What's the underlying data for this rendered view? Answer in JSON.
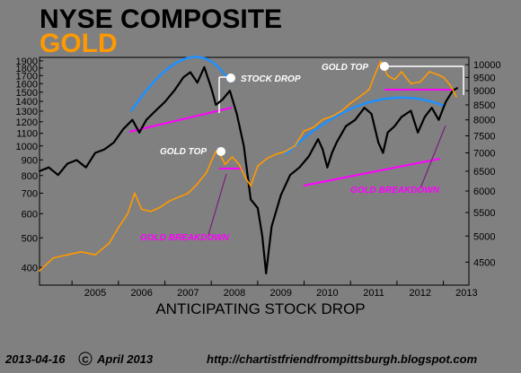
{
  "titles": {
    "line1": "NYSE COMPOSITE",
    "line2": "GOLD"
  },
  "footer": {
    "date": "2013-04-16",
    "copyright_symbol": "C",
    "month": "April 2013",
    "url": "http://chartistfriendfrompittsburgh.blogspot.com"
  },
  "colors": {
    "background": "#808080",
    "nyse": "#000000",
    "gold": "#ff9900",
    "arc": "#1e90ff",
    "trend": "#ff00ff",
    "marker": "#ffffff"
  },
  "chart_data": {
    "type": "line",
    "xlabel": "ANTICIPATING STOCK DROP",
    "x_ticks": [
      "2005",
      "2006",
      "2007",
      "2008",
      "2009",
      "2010",
      "2011",
      "2012",
      "2013"
    ],
    "left_axis": {
      "series": "gold",
      "scale": "log",
      "range": [
        350,
        1950
      ],
      "ticks": [
        "1900",
        "1800",
        "1700",
        "1600",
        "1500",
        "1400",
        "1300",
        "1200",
        "1100",
        "1000",
        "900",
        "800",
        "700",
        "600",
        "500",
        "400"
      ]
    },
    "right_axis": {
      "series": "nyse",
      "scale": "log",
      "range": [
        4100,
        10300
      ],
      "ticks": [
        "10000",
        "9500",
        "9000",
        "8500",
        "8000",
        "7500",
        "7000",
        "6500",
        "6000",
        "5500",
        "5000",
        "4500"
      ]
    },
    "series": [
      {
        "key": "nyse",
        "x": [
          2004.3,
          2004.5,
          2004.7,
          2004.9,
          2005.1,
          2005.3,
          2005.5,
          2005.7,
          2005.9,
          2006.1,
          2006.3,
          2006.45,
          2006.6,
          2006.8,
          2007.0,
          2007.2,
          2007.4,
          2007.55,
          2007.7,
          2007.85,
          2008.0,
          2008.1,
          2008.25,
          2008.4,
          2008.55,
          2008.7,
          2008.85,
          2009.0,
          2009.1,
          2009.18,
          2009.3,
          2009.5,
          2009.7,
          2009.9,
          2010.1,
          2010.3,
          2010.4,
          2010.5,
          2010.6,
          2010.7,
          2010.9,
          2011.1,
          2011.3,
          2011.45,
          2011.6,
          2011.7,
          2011.8,
          2011.95,
          2012.1,
          2012.3,
          2012.45,
          2012.6,
          2012.75,
          2012.9,
          2013.05,
          2013.2,
          2013.3
        ],
        "values": [
          6500,
          6600,
          6400,
          6700,
          6800,
          6600,
          7000,
          7100,
          7300,
          7700,
          8000,
          7600,
          8000,
          8300,
          8600,
          9000,
          9500,
          9700,
          9300,
          9900,
          9100,
          8500,
          8700,
          9000,
          8200,
          7200,
          5800,
          5600,
          5000,
          4300,
          5200,
          5900,
          6400,
          6600,
          6900,
          7400,
          7100,
          6600,
          7000,
          7300,
          7800,
          8000,
          8400,
          8200,
          7300,
          7000,
          7600,
          7800,
          8100,
          8300,
          7600,
          8100,
          8400,
          8000,
          8600,
          9000,
          9100
        ]
      },
      {
        "key": "gold",
        "x": [
          2004.3,
          2004.6,
          2004.9,
          2005.2,
          2005.5,
          2005.8,
          2006.0,
          2006.2,
          2006.35,
          2006.5,
          2006.7,
          2006.9,
          2007.1,
          2007.3,
          2007.5,
          2007.7,
          2007.9,
          2008.0,
          2008.1,
          2008.2,
          2008.3,
          2008.45,
          2008.6,
          2008.75,
          2008.85,
          2009.0,
          2009.2,
          2009.4,
          2009.6,
          2009.8,
          2010.0,
          2010.2,
          2010.4,
          2010.6,
          2010.8,
          2011.0,
          2011.2,
          2011.4,
          2011.55,
          2011.65,
          2011.8,
          2011.95,
          2012.1,
          2012.3,
          2012.5,
          2012.7,
          2012.85,
          2013.0,
          2013.15,
          2013.28
        ],
        "values": [
          390,
          430,
          440,
          450,
          440,
          480,
          540,
          600,
          700,
          620,
          610,
          630,
          660,
          680,
          700,
          750,
          820,
          890,
          960,
          930,
          870,
          920,
          870,
          780,
          740,
          860,
          910,
          940,
          960,
          1000,
          1120,
          1150,
          1220,
          1250,
          1300,
          1380,
          1450,
          1530,
          1750,
          1890,
          1700,
          1650,
          1750,
          1600,
          1620,
          1750,
          1720,
          1680,
          1580,
          1450
        ]
      }
    ],
    "annotations": [
      {
        "text": "STOCK DROP",
        "color": "#ffffff"
      },
      {
        "text": "GOLD TOP",
        "color": "#ffffff"
      },
      {
        "text": "GOLD TOP",
        "color": "#ffffff"
      },
      {
        "text": "GOLD BREAKDOWN",
        "color": "#ff00ff"
      },
      {
        "text": "GOLD BREAKDOWN",
        "color": "#ff00ff"
      }
    ]
  }
}
